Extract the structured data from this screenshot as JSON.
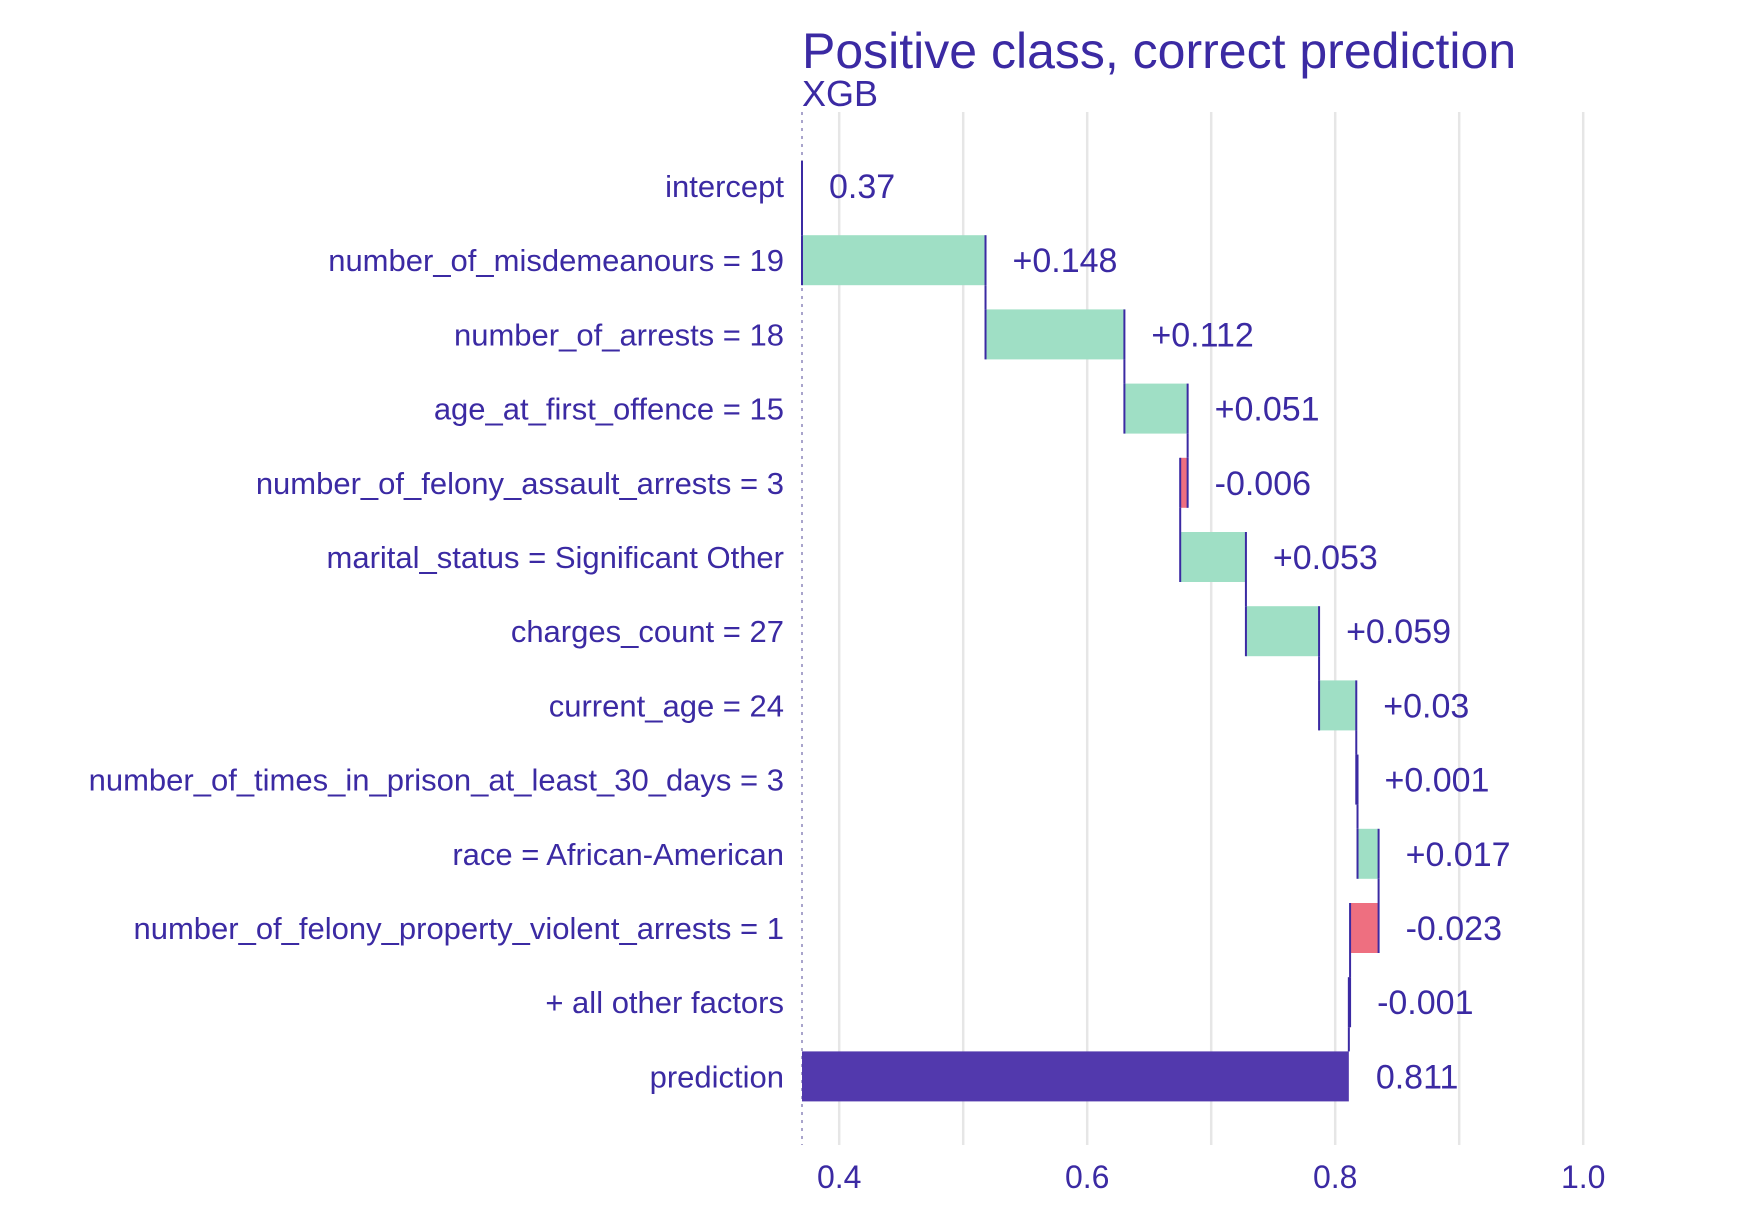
{
  "colors": {
    "text": "#3b2aa3",
    "grid": "#e6e6e6",
    "positive": "#9fdfc5",
    "negative": "#ee6f80",
    "prediction": "#4f35ab",
    "connector": "#3b2aa3"
  },
  "chart_data": {
    "type": "bar",
    "subtype": "waterfall",
    "title": "Positive class, correct prediction",
    "subtitle": "XGB",
    "xlabel": "",
    "ylabel": "",
    "xlim": [
      0.37,
      1.09
    ],
    "xticks": [
      0.4,
      0.6,
      0.8,
      1.0
    ],
    "xtick_labels": [
      "0.4",
      "0.6",
      "0.8",
      "1.0"
    ],
    "grid": true,
    "legend": "none",
    "baseline": 0.37,
    "rows": [
      {
        "label": "intercept",
        "kind": "intercept",
        "value": 0.37,
        "value_label": "0.37"
      },
      {
        "label": "number_of_misdemeanours = 19",
        "kind": "contribution",
        "value": 0.148,
        "value_label": "+0.148"
      },
      {
        "label": "number_of_arrests = 18",
        "kind": "contribution",
        "value": 0.112,
        "value_label": "+0.112"
      },
      {
        "label": "age_at_first_offence = 15",
        "kind": "contribution",
        "value": 0.051,
        "value_label": "+0.051"
      },
      {
        "label": "number_of_felony_assault_arrests = 3",
        "kind": "contribution",
        "value": -0.006,
        "value_label": "-0.006"
      },
      {
        "label": "marital_status = Significant Other",
        "kind": "contribution",
        "value": 0.053,
        "value_label": "+0.053"
      },
      {
        "label": "charges_count = 27",
        "kind": "contribution",
        "value": 0.059,
        "value_label": "+0.059"
      },
      {
        "label": "current_age = 24",
        "kind": "contribution",
        "value": 0.03,
        "value_label": "+0.03"
      },
      {
        "label": "number_of_times_in_prison_at_least_30_days = 3",
        "kind": "contribution",
        "value": 0.001,
        "value_label": "+0.001"
      },
      {
        "label": "race = African-American",
        "kind": "contribution",
        "value": 0.017,
        "value_label": "+0.017"
      },
      {
        "label": "number_of_felony_property_violent_arrests = 1",
        "kind": "contribution",
        "value": -0.023,
        "value_label": "-0.023"
      },
      {
        "label": "+ all other factors",
        "kind": "contribution",
        "value": -0.001,
        "value_label": "-0.001"
      },
      {
        "label": "prediction",
        "kind": "prediction",
        "value": 0.811,
        "value_label": "0.811"
      }
    ]
  }
}
